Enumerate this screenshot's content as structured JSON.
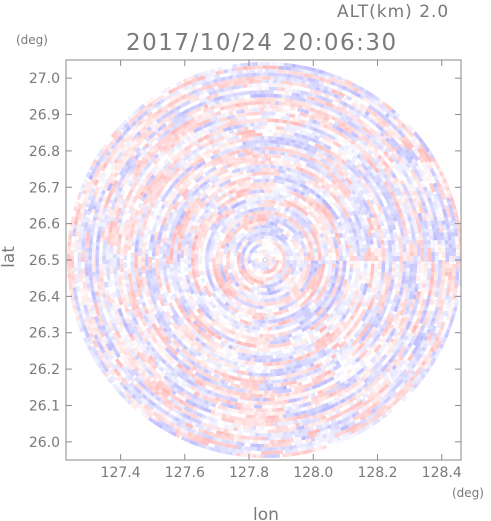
{
  "header": {
    "altitude_label": "ALT(km) 2.0",
    "datetime": "2017/10/24 20:06:30"
  },
  "chart_data": {
    "type": "heatmap",
    "title": "2017/10/24 20:06:30",
    "xlabel": "lon",
    "ylabel": "lat",
    "xunit": "(deg)",
    "yunit": "(deg)",
    "xlim": [
      127.23,
      128.46
    ],
    "ylim": [
      25.95,
      27.05
    ],
    "x_ticks": [
      "127.4",
      "127.6",
      "127.8",
      "128.0",
      "128.2",
      "128.4"
    ],
    "y_ticks": [
      "26.0",
      "26.1",
      "26.2",
      "26.3",
      "26.4",
      "26.5",
      "26.6",
      "26.7",
      "26.8",
      "26.9",
      "27.0"
    ],
    "center": {
      "lon": 127.85,
      "lat": 26.5
    },
    "radius_deg_lat": 0.545,
    "grid": false,
    "colormap": {
      "negative": "#8c8cff",
      "zero": "#ffffff",
      "positive": "#ff8c8c"
    },
    "value_range": [
      -1,
      1
    ]
  }
}
